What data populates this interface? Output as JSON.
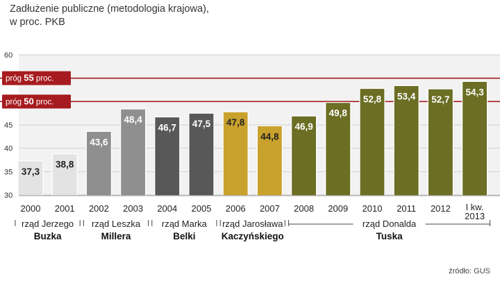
{
  "chart_data": {
    "type": "bar",
    "title": "Zadłużenie publiczne  (metodologia krajowa),",
    "subtitle": "w proc. PKB",
    "categories": [
      "2000",
      "2001",
      "2002",
      "2003",
      "2004",
      "2005",
      "2006",
      "2007",
      "2008",
      "2009",
      "2010",
      "2011",
      "2012",
      "I kw. 2013"
    ],
    "values": [
      37.3,
      38.8,
      43.6,
      48.4,
      46.7,
      47.5,
      47.8,
      44.8,
      46.9,
      49.8,
      52.8,
      53.4,
      52.7,
      54.3
    ],
    "value_labels": [
      "37,3",
      "38,8",
      "43,6",
      "48,4",
      "46,7",
      "47,5",
      "47,8",
      "44,8",
      "46,9",
      "49,8",
      "52,8",
      "53,4",
      "52,7",
      "54,3"
    ],
    "bar_colors": [
      "#e3e3e3",
      "#e3e3e3",
      "#8f8f8f",
      "#8f8f8f",
      "#585858",
      "#585858",
      "#c9a12d",
      "#c9a12d",
      "#6b6e23",
      "#6b6e23",
      "#6b6e23",
      "#6b6e23",
      "#6b6e23",
      "#6b6e23"
    ],
    "label_colors": [
      "#222222",
      "#222222",
      "#ffffff",
      "#ffffff",
      "#ffffff",
      "#ffffff",
      "#222222",
      "#222222",
      "#ffffff",
      "#ffffff",
      "#ffffff",
      "#ffffff",
      "#ffffff",
      "#ffffff"
    ],
    "ylim": [
      30,
      60
    ],
    "yticks": [
      "30",
      "35",
      "40",
      "45",
      "50",
      "55",
      "60"
    ],
    "grid": true,
    "thresholds": [
      {
        "value": 55,
        "prefix": "próg",
        "number": "55",
        "suffix": "proc.",
        "color": "#a61b1f"
      },
      {
        "value": 50,
        "prefix": "próg",
        "number": "50",
        "suffix": "proc.",
        "color": "#a61b1f"
      }
    ],
    "groups": [
      {
        "from": 0,
        "to": 1,
        "line1": "rząd Jerzego",
        "line2": "Buzka"
      },
      {
        "from": 2,
        "to": 3,
        "line1": "rząd Leszka",
        "line2": "Millera"
      },
      {
        "from": 4,
        "to": 5,
        "line1": "rząd Marka",
        "line2": "Belki"
      },
      {
        "from": 6,
        "to": 7,
        "line1": "rząd Jarosława",
        "line2": "Kaczyńskiego"
      },
      {
        "from": 8,
        "to": 13,
        "line1": "rząd Donalda",
        "line2": "Tuska"
      }
    ]
  },
  "source": "źródło: GUS"
}
